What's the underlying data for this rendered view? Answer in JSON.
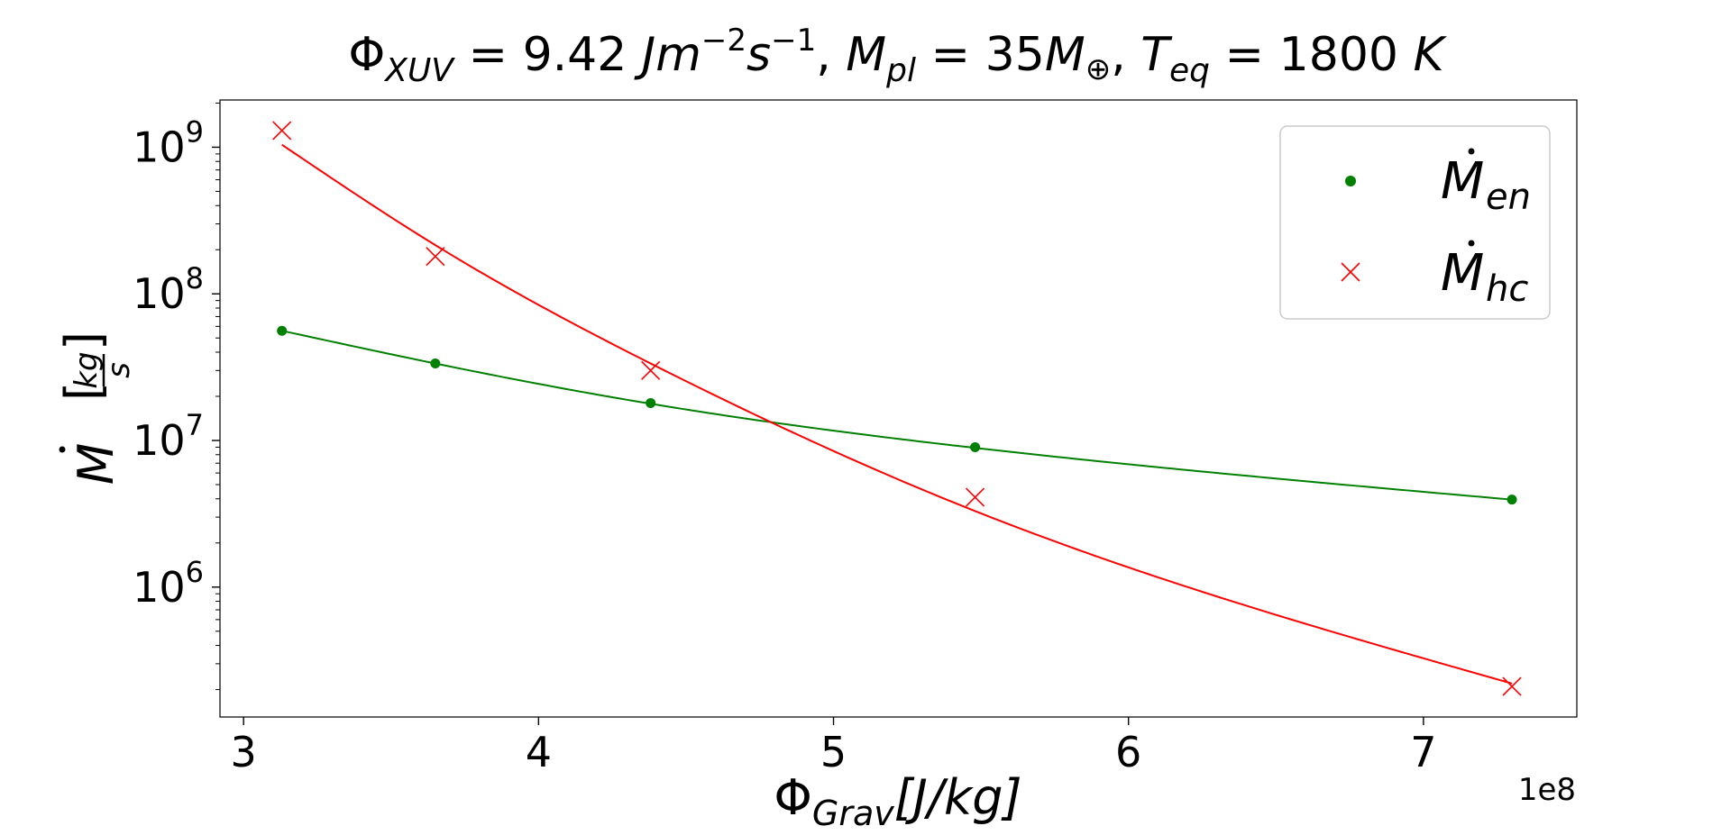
{
  "chart_data": {
    "type": "scatter",
    "title": {
      "text": "Φ_XUV = 9.42 Jm⁻²s⁻¹, M_pl = 35M⊕, T_eq = 1800 K",
      "phi": "Φ",
      "phi_sub": "XUV",
      "eq1": " = 9.42 ",
      "unit_j": "Jm",
      "exp1": "−2",
      "unit_s": "s",
      "exp2": "−1",
      "sep1": ",  ",
      "m": "M",
      "m_sub": "pl",
      "eq2": " = 35",
      "m2": "M",
      "earth": "⊕",
      "sep2": ",  ",
      "t": "T",
      "t_sub": "eq",
      "eq3": " = 1800 ",
      "k": "K"
    },
    "xlabel": {
      "text": "Φ_Grav[J/kg]",
      "phi": "Φ",
      "sub": "Grav",
      "rest": "[J/kg]"
    },
    "ylabel": {
      "text": "Ṁ [kg/s]",
      "m": "M",
      "kg": "kg",
      "s": "s"
    },
    "x_offset_label": "1e8",
    "x_scale": "linear",
    "y_scale": "log",
    "xlim": [
      2.92,
      7.52
    ],
    "ylim": [
      130000,
      2100000000
    ],
    "x_ticks": [
      {
        "value": 3,
        "label": "3"
      },
      {
        "value": 4,
        "label": "4"
      },
      {
        "value": 5,
        "label": "5"
      },
      {
        "value": 6,
        "label": "6"
      },
      {
        "value": 7,
        "label": "7"
      }
    ],
    "y_ticks": [
      {
        "value": 1000000,
        "base": "10",
        "exp": "6"
      },
      {
        "value": 10000000,
        "base": "10",
        "exp": "7"
      },
      {
        "value": 100000000,
        "base": "10",
        "exp": "8"
      },
      {
        "value": 1000000000,
        "base": "10",
        "exp": "9"
      }
    ],
    "grid": false,
    "legend_position": "top-right",
    "series": [
      {
        "name": "Ṁ_en",
        "label_main": "M",
        "label_sub": "en",
        "marker": "circle",
        "color": "#008000",
        "x": [
          3.13,
          3.65,
          4.38,
          5.48,
          7.3
        ],
        "y": [
          56000000,
          33500000,
          18000000,
          9000000,
          3950000
        ],
        "fit_x": [
          3.13,
          3.65,
          4.38,
          5.48,
          7.3
        ],
        "fit_y": [
          56000000,
          33500000,
          17800000,
          8900000,
          3950000
        ]
      },
      {
        "name": "Ṁ_hc",
        "label_main": "M",
        "label_sub": "hc",
        "marker": "x",
        "color": "#ff0000",
        "x": [
          3.13,
          3.65,
          4.38,
          5.48,
          7.3
        ],
        "y": [
          1300000000,
          180000000,
          30000000,
          4100000,
          210000
        ],
        "fit_x": [
          3.13,
          3.65,
          4.38,
          5.48,
          7.3
        ],
        "fit_y": [
          1040000000,
          215000000,
          33500000,
          3300000,
          220000
        ]
      }
    ]
  }
}
